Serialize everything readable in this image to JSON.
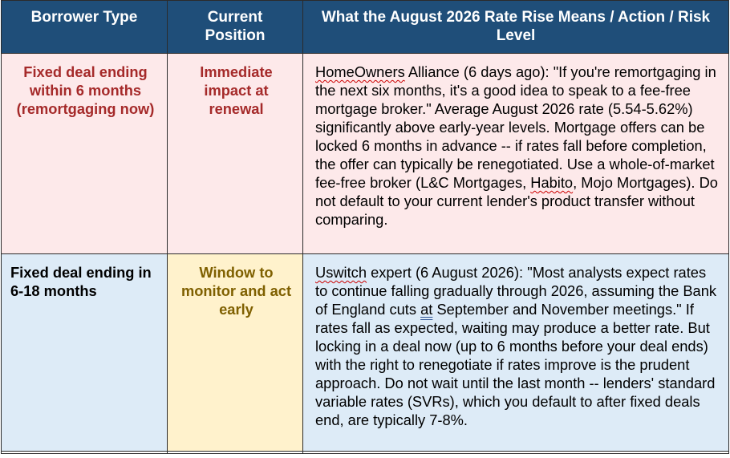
{
  "headers": [
    "Borrower Type",
    "Current Position",
    "What the August 2026 Rate Rise Means / Action / Risk Level"
  ],
  "rows": [
    {
      "borrower_type": "Fixed deal ending within 6 months (remortgaging now)",
      "current_position": "Immediate impact at renewal",
      "source": "HomeOwners",
      "source_rest": " Alliance (6 days ago): \"If you're remortgaging in the next six months, it's a good idea to speak to a fee-free mortgage broker.\" Average August 2026 rate (5.54-5.62%) significantly above early-year levels. Mortgage offers can be locked 6 months in advance -- if rates fall before completion, the offer can typically be renegotiated. Use a whole-of-market fee-free broker (L&C Mortgages, ",
      "flag_word": "Habito",
      "text_end": ", Mojo Mortgages). Do not default to your current lender's product transfer without comparing."
    },
    {
      "borrower_type": "Fixed deal ending in 6-18 months",
      "current_position": "Window to monitor and act early",
      "source": "Uswitch",
      "source_rest": " expert (6 August 2026): \"Most analysts expect rates to continue falling gradually through 2026, assuming the Bank of England cuts ",
      "flag_word": "at",
      "text_end": " September and November meetings.\" If rates fall as expected, waiting may produce a better rate. But locking in a deal now (up to 6 months before your deal ends) with the right to renegotiate if rates improve is the prudent approach. Do not wait until the last month -- lenders' standard variable rates (SVRs), which you default to after fixed deals end, are typically 7-8%."
    }
  ],
  "colors": {
    "header_bg": "#1f4e79",
    "row1_bg": "#fde9ea",
    "row2_bg": "#ddebf7",
    "row2_position_bg": "#fff2cc",
    "row1_text": "#a52a2a",
    "row2_position_text": "#7f6000"
  }
}
